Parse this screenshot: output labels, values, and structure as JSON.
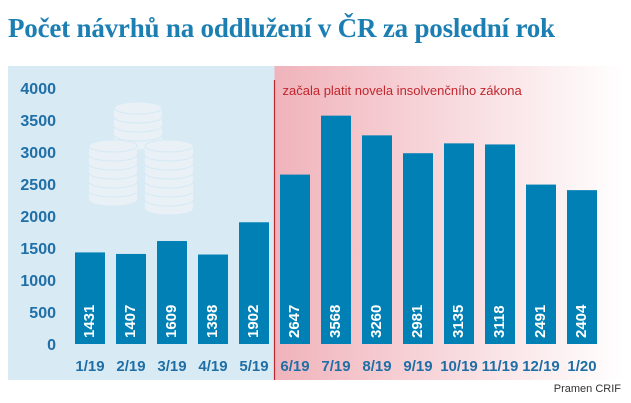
{
  "colors": {
    "title": "#1c7fb3",
    "bar": "#0080b4",
    "axis_text": "#1f6fa6",
    "panel": "#d8eaf4",
    "marker_line": "#c0262d",
    "annotation_text": "#c0262d",
    "highlight_start": "#f0b3bb",
    "highlight_end": "#ffffff",
    "coins": "#e9f1f7"
  },
  "footer": {
    "source": "Pramen CRIF"
  },
  "chart_data": {
    "type": "bar",
    "title": "Počet návrhů na oddlužení v ČR za poslední rok",
    "xlabel": "",
    "ylabel": "",
    "categories": [
      "1/19",
      "2/19",
      "3/19",
      "4/19",
      "5/19",
      "6/19",
      "7/19",
      "8/19",
      "9/19",
      "10/19",
      "11/19",
      "12/19",
      "1/20"
    ],
    "values": [
      1431,
      1407,
      1609,
      1398,
      1902,
      2647,
      3568,
      3260,
      2981,
      3135,
      3118,
      2491,
      2404
    ],
    "data_labels": [
      "1431",
      "1407",
      "1609",
      "1398",
      "1902",
      "2647",
      "3568",
      "3260",
      "2981",
      "3135",
      "3118",
      "2491",
      "2404"
    ],
    "ylim": [
      0,
      4000
    ],
    "yticks": [
      0,
      500,
      1000,
      1500,
      2000,
      2500,
      3000,
      3500,
      4000
    ],
    "ytick_labels": [
      "0",
      "500",
      "1000",
      "1500",
      "2000",
      "2500",
      "3000",
      "3500",
      "4000"
    ],
    "grid": false,
    "legend": "none",
    "annotation": {
      "text": "začala platit novela insolvenčního zákona",
      "after_category": "5/19"
    },
    "decoration": "coins-icon"
  }
}
